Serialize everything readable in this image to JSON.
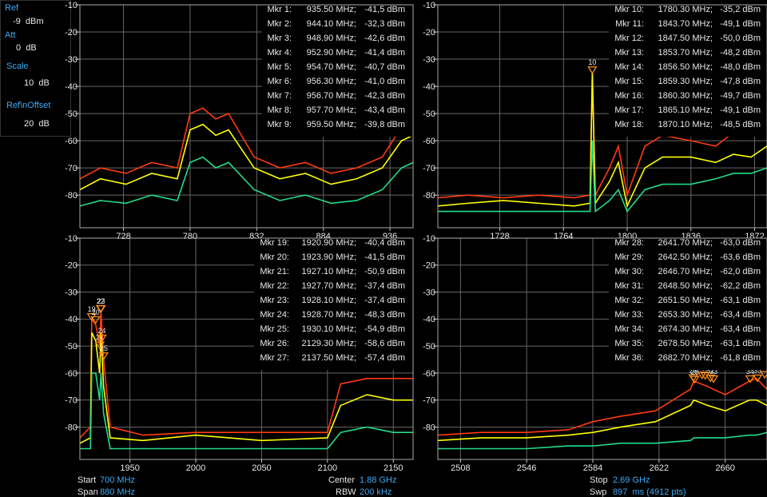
{
  "sidebar": {
    "ref_label": "Ref",
    "ref_value": "-9  dBm",
    "att_label": "Att",
    "att_value": "0  dB",
    "scale_label": "Scale",
    "scale_value": "10  dB",
    "offset_label": "Ref\\nOffset",
    "offset_value": "20  dB"
  },
  "panels": [
    {
      "xlim": [
        694,
        954
      ],
      "xticks": [
        728,
        780,
        832,
        884,
        936
      ],
      "ylim": [
        -92,
        -10
      ],
      "yticks": [
        -10,
        -20,
        -30,
        -40,
        -50,
        -60,
        -70,
        -80
      ],
      "x": [
        694,
        710,
        730,
        750,
        770,
        780,
        790,
        800,
        810,
        830,
        850,
        870,
        890,
        910,
        930,
        945,
        954
      ],
      "traces": [
        {
          "color": "#ff3a10",
          "values": [
            -74,
            -70,
            -72,
            -68,
            -70,
            -50,
            -48,
            -52,
            -50,
            -66,
            -70,
            -68,
            -72,
            -70,
            -66,
            -55,
            -52
          ]
        },
        {
          "color": "#ffff00",
          "values": [
            -78,
            -74,
            -76,
            -72,
            -74,
            -56,
            -54,
            -58,
            -56,
            -70,
            -74,
            -72,
            -76,
            -74,
            -70,
            -60,
            -58
          ]
        },
        {
          "color": "#22dd88",
          "values": [
            -84,
            -82,
            -83,
            -80,
            -82,
            -68,
            -66,
            -70,
            -68,
            -78,
            -82,
            -80,
            -83,
            -82,
            -78,
            -70,
            -68
          ]
        }
      ],
      "markers": [
        {
          "num": 1,
          "label": "Mkr 1:",
          "freq": {
            "value": 935.5,
            "label": "935.50 MHz;"
          },
          "level": {
            "value": -41.5,
            "label": "-41,5 dBm"
          }
        },
        {
          "num": 2,
          "label": "Mkr 2:",
          "freq": {
            "value": 944.1,
            "label": "944.10 MHz;"
          },
          "level": {
            "value": -32.3,
            "label": "-32,3 dBm"
          }
        },
        {
          "num": 3,
          "label": "Mkr 3:",
          "freq": {
            "value": 948.9,
            "label": "948.90 MHz;"
          },
          "level": {
            "value": -42.6,
            "label": "-42,6 dBm"
          }
        },
        {
          "num": 4,
          "label": "Mkr 4:",
          "freq": {
            "value": 952.9,
            "label": "952.90 MHz;"
          },
          "level": {
            "value": -41.4,
            "label": "-41,4 dBm"
          }
        },
        {
          "num": 5,
          "label": "Mkr 5:",
          "freq": {
            "value": 954.7,
            "label": "954.70 MHz;"
          },
          "level": {
            "value": -40.7,
            "label": "-40,7 dBm"
          }
        },
        {
          "num": 6,
          "label": "Mkr 6:",
          "freq": {
            "value": 956.3,
            "label": "956.30 MHz;"
          },
          "level": {
            "value": -41.0,
            "label": "-41,0 dBm"
          }
        },
        {
          "num": 7,
          "label": "Mkr 7:",
          "freq": {
            "value": 956.7,
            "label": "956.70 MHz;"
          },
          "level": {
            "value": -42.3,
            "label": "-42,3 dBm"
          }
        },
        {
          "num": 8,
          "label": "Mkr 8:",
          "freq": {
            "value": 957.7,
            "label": "957.70 MHz;"
          },
          "level": {
            "value": -43.4,
            "label": "-43,4 dBm"
          }
        },
        {
          "num": 9,
          "label": "Mkr 9:",
          "freq": {
            "value": 959.5,
            "label": "959.50 MHz;"
          },
          "level": {
            "value": -39.8,
            "label": "-39,8 dBm"
          }
        }
      ]
    },
    {
      "xlim": [
        1693,
        1879
      ],
      "xticks": [
        1728,
        1764,
        1800,
        1836,
        1872
      ],
      "ylim": [
        -92,
        -10
      ],
      "yticks": [
        -10,
        -20,
        -30,
        -40,
        -50,
        -60,
        -70,
        -80
      ],
      "x": [
        1693,
        1710,
        1730,
        1750,
        1770,
        1779,
        1780.3,
        1782,
        1790,
        1795,
        1800,
        1810,
        1820,
        1836,
        1850,
        1860,
        1870,
        1879
      ],
      "traces": [
        {
          "color": "#ff3a10",
          "values": [
            -81,
            -80,
            -81,
            -80,
            -81,
            -80,
            -35,
            -80,
            -70,
            -62,
            -80,
            -62,
            -58,
            -60,
            -62,
            -57,
            -58,
            -56
          ]
        },
        {
          "color": "#ffff00",
          "values": [
            -84,
            -83,
            -82,
            -83,
            -84,
            -83,
            -35,
            -83,
            -75,
            -68,
            -84,
            -70,
            -66,
            -66,
            -68,
            -65,
            -66,
            -62
          ]
        },
        {
          "color": "#22dd88",
          "values": [
            -86,
            -86,
            -86,
            -86,
            -86,
            -86,
            -60,
            -86,
            -82,
            -78,
            -86,
            -78,
            -76,
            -76,
            -74,
            -72,
            -72,
            -70
          ]
        }
      ],
      "markers": [
        {
          "num": 10,
          "label": "Mkr 10:",
          "freq": {
            "value": 1780.3,
            "label": "1780.30 MHz;"
          },
          "level": {
            "value": -35.2,
            "label": "-35,2 dBm"
          }
        },
        {
          "num": 11,
          "label": "Mkr 11:",
          "freq": {
            "value": 1843.7,
            "label": "1843.70 MHz;"
          },
          "level": {
            "value": -49.1,
            "label": "-49,1 dBm"
          }
        },
        {
          "num": 12,
          "label": "Mkr 12:",
          "freq": {
            "value": 1847.5,
            "label": "1847.50 MHz;"
          },
          "level": {
            "value": -50.0,
            "label": "-50,0 dBm"
          }
        },
        {
          "num": 13,
          "label": "Mkr 13:",
          "freq": {
            "value": 1853.7,
            "label": "1853.70 MHz;"
          },
          "level": {
            "value": -48.2,
            "label": "-48,2 dBm"
          }
        },
        {
          "num": 14,
          "label": "Mkr 14:",
          "freq": {
            "value": 1856.5,
            "label": "1856.50 MHz;"
          },
          "level": {
            "value": -48.0,
            "label": "-48,0 dBm"
          }
        },
        {
          "num": 15,
          "label": "Mkr 15:",
          "freq": {
            "value": 1859.3,
            "label": "1859.30 MHz;"
          },
          "level": {
            "value": -47.8,
            "label": "-47,8 dBm"
          }
        },
        {
          "num": 16,
          "label": "Mkr 16:",
          "freq": {
            "value": 1860.3,
            "label": "1860.30 MHz;"
          },
          "level": {
            "value": -49.7,
            "label": "-49,7 dBm"
          }
        },
        {
          "num": 17,
          "label": "Mkr 17:",
          "freq": {
            "value": 1865.1,
            "label": "1865.10 MHz;"
          },
          "level": {
            "value": -49.1,
            "label": "-49,1 dBm"
          }
        },
        {
          "num": 18,
          "label": "Mkr 18:",
          "freq": {
            "value": 1870.1,
            "label": "1870.10 MHz;"
          },
          "level": {
            "value": -48.5,
            "label": "-48,5 dBm"
          }
        }
      ]
    },
    {
      "xlim": [
        1912,
        2165
      ],
      "xticks": [
        1950,
        2000,
        2050,
        2100,
        2150
      ],
      "ylim": [
        -92,
        -10
      ],
      "yticks": [
        -10,
        -20,
        -30,
        -40,
        -50,
        -60,
        -70,
        -80
      ],
      "x": [
        1912,
        1920,
        1921,
        1924,
        1927,
        1928,
        1930,
        1935,
        1960,
        2000,
        2050,
        2100,
        2110,
        2130,
        2150,
        2165
      ],
      "traces": [
        {
          "color": "#ff3a10",
          "values": [
            -84,
            -80,
            -40,
            -42,
            -50,
            -37,
            -55,
            -80,
            -83,
            -82,
            -82,
            -82,
            -64,
            -62,
            -62,
            -62
          ]
        },
        {
          "color": "#ffff00",
          "values": [
            -86,
            -84,
            -45,
            -48,
            -60,
            -45,
            -65,
            -84,
            -85,
            -83,
            -85,
            -84,
            -72,
            -68,
            -70,
            -70
          ]
        },
        {
          "color": "#22dd88",
          "values": [
            -88,
            -88,
            -60,
            -60,
            -70,
            -60,
            -75,
            -88,
            -88,
            -88,
            -88,
            -88,
            -82,
            -80,
            -82,
            -82
          ]
        }
      ],
      "markers": [
        {
          "num": 19,
          "label": "Mkr 19:",
          "freq": {
            "value": 1920.9,
            "label": "1920.90 MHz;"
          },
          "level": {
            "value": -40.4,
            "label": "-40,4 dBm"
          }
        },
        {
          "num": 20,
          "label": "Mkr 20:",
          "freq": {
            "value": 1923.9,
            "label": "1923.90 MHz;"
          },
          "level": {
            "value": -41.5,
            "label": "-41,5 dBm"
          }
        },
        {
          "num": 21,
          "label": "Mkr 21:",
          "freq": {
            "value": 1927.1,
            "label": "1927.10 MHz;"
          },
          "level": {
            "value": -50.9,
            "label": "-50,9 dBm"
          }
        },
        {
          "num": 22,
          "label": "Mkr 22:",
          "freq": {
            "value": 1927.7,
            "label": "1927.70 MHz;"
          },
          "level": {
            "value": -37.4,
            "label": "-37,4 dBm"
          }
        },
        {
          "num": 23,
          "label": "Mkr 23:",
          "freq": {
            "value": 1928.1,
            "label": "1928.10 MHz;"
          },
          "level": {
            "value": -37.4,
            "label": "-37,4 dBm"
          }
        },
        {
          "num": 24,
          "label": "Mkr 24:",
          "freq": {
            "value": 1928.7,
            "label": "1928.70 MHz;"
          },
          "level": {
            "value": -48.3,
            "label": "-48,3 dBm"
          }
        },
        {
          "num": 25,
          "label": "Mkr 25:",
          "freq": {
            "value": 1930.1,
            "label": "1930.10 MHz;"
          },
          "level": {
            "value": -54.9,
            "label": "-54,9 dBm"
          }
        },
        {
          "num": 26,
          "label": "Mkr 26:",
          "freq": {
            "value": 2129.3,
            "label": "2129.30 MHz;"
          },
          "level": {
            "value": -58.6,
            "label": "-58,6 dBm"
          }
        },
        {
          "num": 27,
          "label": "Mkr 27:",
          "freq": {
            "value": 2137.5,
            "label": "2137.50 MHz;"
          },
          "level": {
            "value": -57.4,
            "label": "-57,4 dBm"
          }
        }
      ]
    },
    {
      "xlim": [
        2495,
        2684
      ],
      "xticks": [
        2508,
        2546,
        2584,
        2622,
        2660
      ],
      "ylim": [
        -92,
        -10
      ],
      "yticks": [
        -10,
        -20,
        -30,
        -40,
        -50,
        -60,
        -70,
        -80
      ],
      "x": [
        2495,
        2520,
        2546,
        2570,
        2584,
        2600,
        2620,
        2640,
        2642,
        2650,
        2660,
        2674,
        2678,
        2684
      ],
      "traces": [
        {
          "color": "#ff3a10",
          "values": [
            -83,
            -82,
            -82,
            -81,
            -78,
            -76,
            -74,
            -66,
            -63,
            -65,
            -68,
            -63,
            -62,
            -66
          ]
        },
        {
          "color": "#ffff00",
          "values": [
            -85,
            -84,
            -84,
            -83,
            -82,
            -80,
            -78,
            -72,
            -70,
            -72,
            -74,
            -70,
            -70,
            -72
          ]
        },
        {
          "color": "#22dd88",
          "values": [
            -88,
            -88,
            -88,
            -87,
            -87,
            -86,
            -86,
            -85,
            -84,
            -84,
            -84,
            -83,
            -83,
            -82
          ]
        }
      ],
      "markers": [
        {
          "num": 28,
          "label": "Mkr 28:",
          "freq": {
            "value": 2641.7,
            "label": "2641.70 MHz;"
          },
          "level": {
            "value": -63.0,
            "label": "-63,0 dBm"
          }
        },
        {
          "num": 29,
          "label": "Mkr 29:",
          "freq": {
            "value": 2642.5,
            "label": "2642.50 MHz;"
          },
          "level": {
            "value": -63.6,
            "label": "-63,6 dBm"
          }
        },
        {
          "num": 30,
          "label": "Mkr 30:",
          "freq": {
            "value": 2646.7,
            "label": "2646.70 MHz;"
          },
          "level": {
            "value": -62.0,
            "label": "-62,0 dBm"
          }
        },
        {
          "num": 31,
          "label": "Mkr 31:",
          "freq": {
            "value": 2648.5,
            "label": "2648.50 MHz;"
          },
          "level": {
            "value": -62.2,
            "label": "-62,2 dBm"
          }
        },
        {
          "num": 32,
          "label": "Mkr 32:",
          "freq": {
            "value": 2651.5,
            "label": "2651.50 MHz;"
          },
          "level": {
            "value": -63.1,
            "label": "-63,1 dBm"
          }
        },
        {
          "num": 33,
          "label": "Mkr 33:",
          "freq": {
            "value": 2653.3,
            "label": "2653.30 MHz;"
          },
          "level": {
            "value": -63.4,
            "label": "-63,4 dBm"
          }
        },
        {
          "num": 34,
          "label": "Mkr 34:",
          "freq": {
            "value": 2674.3,
            "label": "2674.30 MHz;"
          },
          "level": {
            "value": -63.4,
            "label": "-63,4 dBm"
          }
        },
        {
          "num": 35,
          "label": "Mkr 35:",
          "freq": {
            "value": 2678.5,
            "label": "2678.50 MHz;"
          },
          "level": {
            "value": -63.1,
            "label": "-63,1 dBm"
          }
        },
        {
          "num": 36,
          "label": "Mkr 36:",
          "freq": {
            "value": 2682.7,
            "label": "2682.70 MHz;"
          },
          "level": {
            "value": -61.8,
            "label": "-61,8 dBm"
          }
        }
      ]
    }
  ],
  "footer": {
    "start_label": "Start",
    "start_value": "700 MHz",
    "span_label": "Span",
    "span_value": "880 MHz",
    "center_label": "Center",
    "center_value": "1.88 GHz",
    "rbw_label": "RBW",
    "rbw_value": "200 kHz",
    "stop_label": "Stop",
    "stop_value": "2.69 GHz",
    "swp_label": "Swp",
    "swp_value": "897  ms (4912 pts)"
  }
}
